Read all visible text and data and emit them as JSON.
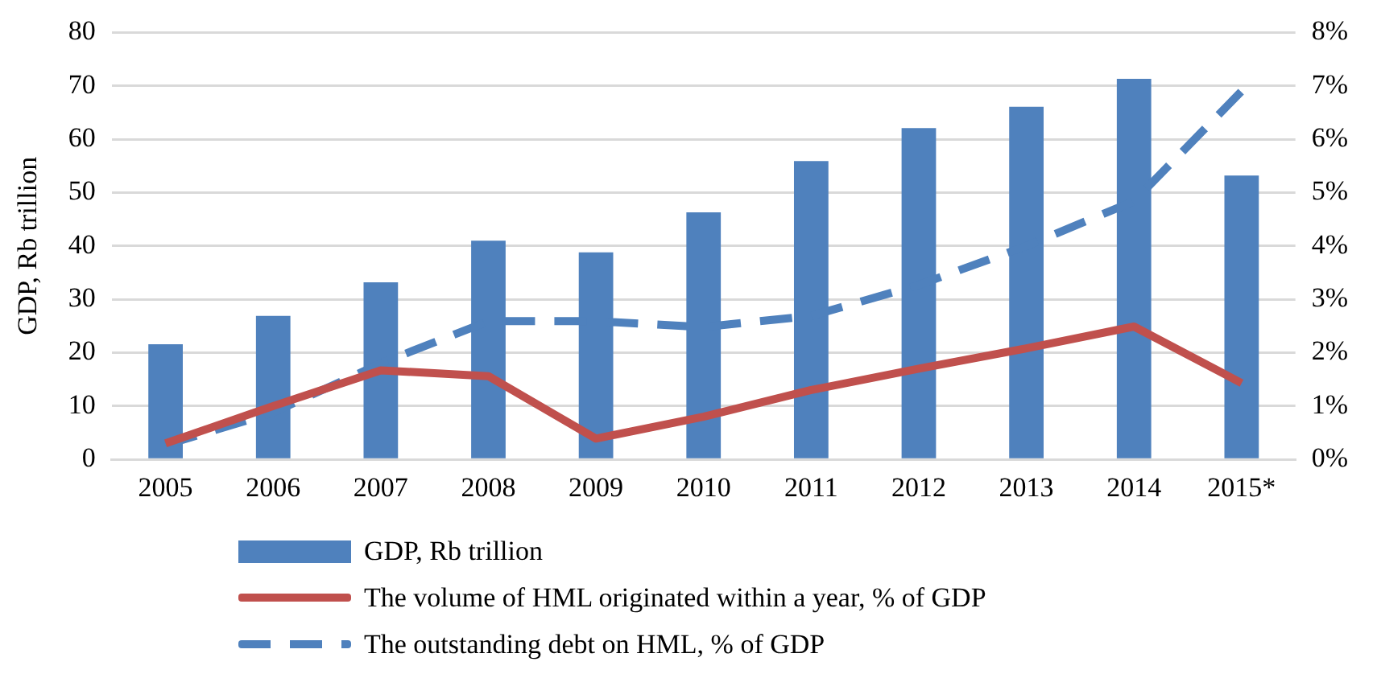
{
  "chart_data": {
    "type": "bar",
    "ylabel": "GDP, Rb trillion",
    "categories": [
      "2005",
      "2006",
      "2007",
      "2008",
      "2009",
      "2010",
      "2011",
      "2012",
      "2013",
      "2014",
      "2015*"
    ],
    "series": [
      {
        "name": "GDP, Rb trillion",
        "color": "#4f81bd",
        "values": [
          21.6,
          26.9,
          33.2,
          41.0,
          38.8,
          46.3,
          55.9,
          62.1,
          66.1,
          71.3,
          53.2
        ]
      },
      {
        "name": "The volume of HML originated within a year, % of GDP",
        "type": "line",
        "axis": "y2",
        "color": "#c0504d",
        "line_style": "solid",
        "values": [
          0.3,
          1.0,
          1.67,
          1.56,
          0.39,
          0.8,
          1.3,
          1.7,
          2.08,
          2.49,
          1.43
        ]
      },
      {
        "name": "The outstanding debt on HML, % of GDP",
        "type": "line",
        "axis": "y2",
        "color": "#4f81bd",
        "line_style": "dashed",
        "values": [
          0.27,
          0.88,
          1.8,
          2.59,
          2.59,
          2.48,
          2.69,
          3.27,
          4.0,
          4.84,
          6.9
        ]
      }
    ],
    "ylim": [
      0,
      80
    ],
    "yticks": [
      0,
      10,
      20,
      30,
      40,
      50,
      60,
      70,
      80
    ],
    "y2lim": [
      0,
      8
    ],
    "y2ticks": [
      {
        "value": 0,
        "label": "0%"
      },
      {
        "value": 1,
        "label": "1%"
      },
      {
        "value": 2,
        "label": "2%"
      },
      {
        "value": 3,
        "label": "3%"
      },
      {
        "value": 4,
        "label": "4%"
      },
      {
        "value": 5,
        "label": "5%"
      },
      {
        "value": 6,
        "label": "6%"
      },
      {
        "value": 7,
        "label": "7%"
      },
      {
        "value": 8,
        "label": "8%"
      }
    ],
    "grid": "y",
    "legend": "bottom",
    "marker": "none"
  }
}
